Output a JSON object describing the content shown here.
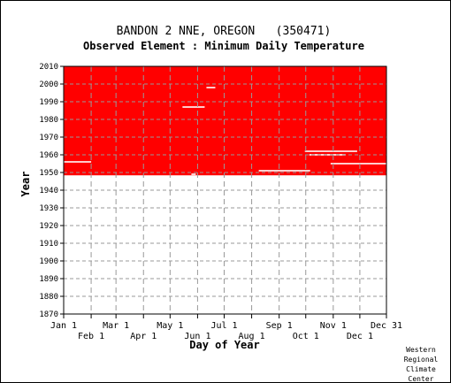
{
  "chart_data": {
    "type": "scatter",
    "title": "BANDON 2 NNE, OREGON   (350471)",
    "subtitle": "Observed Element : Minimum Daily Temperature",
    "xlabel": "Day of Year",
    "ylabel": "Year",
    "ylim": [
      1870,
      2010
    ],
    "yticks": [
      1870,
      1880,
      1890,
      1900,
      1910,
      1920,
      1930,
      1940,
      1950,
      1960,
      1970,
      1980,
      1990,
      2000,
      2010
    ],
    "xticks_top": [
      {
        "label": "Jan 1",
        "day": 1
      },
      {
        "label": "Mar 1",
        "day": 60
      },
      {
        "label": "May 1",
        "day": 121
      },
      {
        "label": "Jul 1",
        "day": 182
      },
      {
        "label": "Sep 1",
        "day": 244
      },
      {
        "label": "Nov 1",
        "day": 305
      },
      {
        "label": "Dec 31",
        "day": 365
      }
    ],
    "xticks_bottom": [
      {
        "label": "Feb 1",
        "day": 32
      },
      {
        "label": "Apr 1",
        "day": 91
      },
      {
        "label": "Jun 1",
        "day": 152
      },
      {
        "label": "Aug 1",
        "day": 213
      },
      {
        "label": "Oct 1",
        "day": 274
      },
      {
        "label": "Dec 1",
        "day": 335
      }
    ],
    "grid": true,
    "data_color": "#ff0000",
    "observed_years": [
      1948,
      2010
    ],
    "missing_segments": [
      {
        "year": 1956,
        "start_day": 1,
        "end_day": 32
      },
      {
        "year": 1987,
        "start_day": 135,
        "end_day": 160
      },
      {
        "year": 1998,
        "start_day": 162,
        "end_day": 172
      },
      {
        "year": 1962,
        "start_day": 273,
        "end_day": 332
      },
      {
        "year": 1960,
        "start_day": 278,
        "end_day": 319
      },
      {
        "year": 1955,
        "start_day": 302,
        "end_day": 365
      },
      {
        "year": 1951,
        "start_day": 221,
        "end_day": 279
      },
      {
        "year": 1949,
        "start_day": 145,
        "end_day": 150
      },
      {
        "year": 1948,
        "start_day": 1,
        "end_day": 365
      }
    ],
    "missing_points_note": ""
  },
  "credit": [
    "Western",
    "Regional",
    "Climate",
    "Center"
  ]
}
